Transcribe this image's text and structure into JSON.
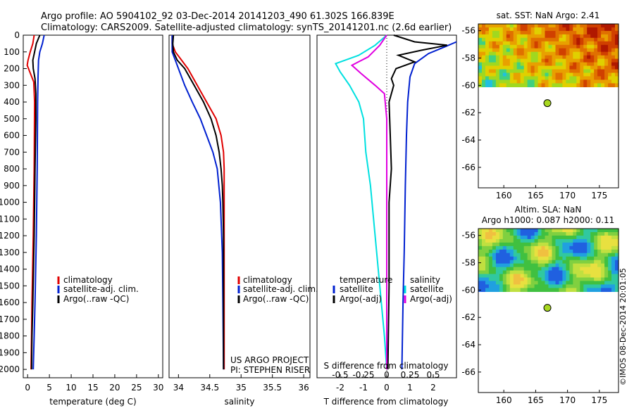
{
  "header": {
    "line1": "Argo profile: AO 5904102_92 03-Dec-2014 20141203_490 61.302S 166.839E",
    "line2": "Climatology: CARS2009. Satellite-adjusted climatology: synTS_20141201.nc (2.6d earlier)"
  },
  "credit": "©IMOS 08-Dec-2014 20:01:05",
  "colors": {
    "climatology": "#e00000",
    "satellite": "#0020d0",
    "argo": "#000000",
    "salinity": "#00e0e0",
    "salinity_argo": "#e000e0",
    "float_marker": "#a8d820"
  },
  "chart_data": [
    {
      "id": "temperature",
      "type": "line",
      "xlabel": "temperature (deg C)",
      "ylabel": "",
      "xlim": [
        -1,
        31
      ],
      "ylim": [
        2050,
        0
      ],
      "xticks": [
        0,
        5,
        10,
        15,
        20,
        25,
        30
      ],
      "yticks": [
        0,
        100,
        200,
        300,
        400,
        500,
        600,
        700,
        800,
        900,
        1000,
        1100,
        1200,
        1300,
        1400,
        1500,
        1600,
        1700,
        1800,
        1900,
        2000
      ],
      "legend": [
        "climatology",
        "satellite-adj. clim.",
        "Argo(..raw -QC)"
      ],
      "series": [
        {
          "name": "climatology",
          "color": "#e00000",
          "points": [
            [
              1.5,
              0
            ],
            [
              1.2,
              50
            ],
            [
              0.6,
              100
            ],
            [
              0.1,
              150
            ],
            [
              -0.1,
              180
            ],
            [
              0.5,
              220
            ],
            [
              1.4,
              280
            ],
            [
              1.6,
              400
            ],
            [
              1.5,
              800
            ],
            [
              1.3,
              1200
            ],
            [
              1.0,
              1600
            ],
            [
              0.9,
              1800
            ],
            [
              0.8,
              2000
            ]
          ]
        },
        {
          "name": "satellite-adj. clim.",
          "color": "#0020d0",
          "points": [
            [
              3.8,
              0
            ],
            [
              3.4,
              50
            ],
            [
              2.8,
              100
            ],
            [
              2.5,
              150
            ],
            [
              2.4,
              250
            ],
            [
              2.3,
              400
            ],
            [
              2.2,
              800
            ],
            [
              2.0,
              1200
            ],
            [
              1.7,
              1600
            ],
            [
              1.5,
              1800
            ],
            [
              1.3,
              2000
            ]
          ]
        },
        {
          "name": "Argo(..raw -QC)",
          "color": "#000000",
          "points": [
            [
              2.8,
              0
            ],
            [
              2.0,
              50
            ],
            [
              1.6,
              100
            ],
            [
              1.2,
              150
            ],
            [
              1.3,
              200
            ],
            [
              1.7,
              260
            ],
            [
              1.9,
              350
            ],
            [
              1.9,
              500
            ],
            [
              1.7,
              800
            ],
            [
              1.5,
              1200
            ],
            [
              1.2,
              1600
            ],
            [
              1.0,
              1800
            ],
            [
              0.9,
              2000
            ]
          ]
        }
      ]
    },
    {
      "id": "salinity",
      "type": "line",
      "xlabel": "salinity",
      "ylabel": "",
      "xlim": [
        33.85,
        36.1
      ],
      "ylim": [
        2050,
        0
      ],
      "xticks": [
        34,
        34.5,
        35,
        35.5,
        36
      ],
      "legend": [
        "climatology",
        "satellite-adj. clim.",
        "Argo(..raw -QC)"
      ],
      "annotations": [
        "US ARGO PROJECT",
        "PI: STEPHEN RISER"
      ],
      "series": [
        {
          "name": "climatology",
          "color": "#e00000",
          "points": [
            [
              33.9,
              0
            ],
            [
              33.9,
              50
            ],
            [
              33.95,
              100
            ],
            [
              34.05,
              150
            ],
            [
              34.15,
              200
            ],
            [
              34.3,
              300
            ],
            [
              34.45,
              400
            ],
            [
              34.6,
              500
            ],
            [
              34.68,
              600
            ],
            [
              34.72,
              700
            ],
            [
              34.73,
              800
            ],
            [
              34.73,
              1000
            ],
            [
              34.73,
              1500
            ],
            [
              34.73,
              2000
            ]
          ]
        },
        {
          "name": "satellite-adj. clim.",
          "color": "#0020d0",
          "points": [
            [
              33.9,
              0
            ],
            [
              33.9,
              100
            ],
            [
              33.95,
              150
            ],
            [
              34.0,
              200
            ],
            [
              34.1,
              300
            ],
            [
              34.22,
              400
            ],
            [
              34.35,
              500
            ],
            [
              34.45,
              600
            ],
            [
              34.55,
              700
            ],
            [
              34.62,
              800
            ],
            [
              34.67,
              1000
            ],
            [
              34.7,
              1300
            ],
            [
              34.71,
              1600
            ],
            [
              34.72,
              2000
            ]
          ]
        },
        {
          "name": "Argo(..raw -QC)",
          "color": "#000000",
          "points": [
            [
              33.92,
              0
            ],
            [
              33.91,
              50
            ],
            [
              33.92,
              100
            ],
            [
              33.98,
              150
            ],
            [
              34.1,
              200
            ],
            [
              34.25,
              300
            ],
            [
              34.4,
              400
            ],
            [
              34.52,
              500
            ],
            [
              34.6,
              600
            ],
            [
              34.65,
              700
            ],
            [
              34.68,
              800
            ],
            [
              34.7,
              900
            ],
            [
              34.71,
              1000
            ],
            [
              34.72,
              1200
            ],
            [
              34.72,
              1500
            ],
            [
              34.72,
              2000
            ]
          ]
        }
      ]
    },
    {
      "id": "difference",
      "type": "line",
      "xlabel": "T difference from climatology",
      "xlabel_top": "S difference from climatology",
      "xlim": [
        -3,
        3
      ],
      "ylim": [
        2050,
        0
      ],
      "xticks": [
        -2,
        -1,
        0,
        1,
        2
      ],
      "xtick_labels_top": [
        "-0.5",
        "-0.25",
        "0",
        "0.25",
        "0.5"
      ],
      "legend": [
        "temperature",
        "satellite",
        "Argo(-adj)",
        "salinity",
        "satellite",
        "Argo(-adj)"
      ],
      "series": [
        {
          "name": "satellite",
          "quantity": "temperature",
          "color": "#0020d0",
          "points": [
            [
              3.0,
              40
            ],
            [
              2.5,
              70
            ],
            [
              1.8,
              110
            ],
            [
              1.2,
              170
            ],
            [
              1.0,
              250
            ],
            [
              0.9,
              400
            ],
            [
              0.85,
              600
            ],
            [
              0.8,
              900
            ],
            [
              0.75,
              1300
            ],
            [
              0.7,
              1600
            ],
            [
              0.65,
              2000
            ]
          ]
        },
        {
          "name": "Argo(-adj)",
          "quantity": "temperature",
          "color": "#000000",
          "points": [
            [
              0.3,
              0
            ],
            [
              1.2,
              40
            ],
            [
              2.6,
              60
            ],
            [
              1.5,
              90
            ],
            [
              0.5,
              120
            ],
            [
              1.2,
              160
            ],
            [
              0.4,
              200
            ],
            [
              0.2,
              260
            ],
            [
              0.3,
              300
            ],
            [
              0.1,
              400
            ],
            [
              0.15,
              600
            ],
            [
              0.2,
              800
            ],
            [
              0.1,
              1000
            ],
            [
              0.1,
              1500
            ],
            [
              0.05,
              2000
            ]
          ]
        },
        {
          "name": "satellite",
          "quantity": "salinity",
          "color": "#00e0e0",
          "points": [
            [
              0.0,
              0
            ],
            [
              -0.5,
              60
            ],
            [
              -1.2,
              120
            ],
            [
              -2.2,
              170
            ],
            [
              -2.0,
              220
            ],
            [
              -1.6,
              300
            ],
            [
              -1.2,
              400
            ],
            [
              -1.0,
              500
            ],
            [
              -0.9,
              700
            ],
            [
              -0.7,
              900
            ],
            [
              -0.5,
              1200
            ],
            [
              -0.3,
              1500
            ],
            [
              -0.1,
              1800
            ],
            [
              0.0,
              2000
            ]
          ]
        },
        {
          "name": "Argo(-adj)",
          "quantity": "salinity",
          "color": "#e000e0",
          "points": [
            [
              0.0,
              0
            ],
            [
              -0.3,
              60
            ],
            [
              -0.8,
              130
            ],
            [
              -1.5,
              180
            ],
            [
              -1.1,
              230
            ],
            [
              -0.5,
              300
            ],
            [
              -0.1,
              350
            ],
            [
              0.0,
              500
            ],
            [
              0.0,
              1000
            ],
            [
              0.0,
              2000
            ]
          ]
        }
      ]
    },
    {
      "id": "sst_map",
      "type": "heatmap",
      "title": "sat. SST: NaN Argo: 2.41",
      "xlim": [
        156,
        178
      ],
      "ylim": [
        -67.5,
        -55.5
      ],
      "xticks": [
        160,
        165,
        170,
        175
      ],
      "yticks": [
        -56,
        -58,
        -60,
        -62,
        -64,
        -66
      ],
      "float": {
        "lon": 166.84,
        "lat": -61.3
      }
    },
    {
      "id": "sla_map",
      "type": "heatmap",
      "title": "Altim. SLA: NaN",
      "subtitle": "Argo h1000: 0.087 h2000: 0.11",
      "xlim": [
        156,
        178
      ],
      "ylim": [
        -67.5,
        -55.5
      ],
      "xticks": [
        160,
        165,
        170,
        175
      ],
      "yticks": [
        -56,
        -58,
        -60,
        -62,
        -64,
        -66
      ],
      "float": {
        "lon": 166.84,
        "lat": -61.3
      }
    }
  ]
}
